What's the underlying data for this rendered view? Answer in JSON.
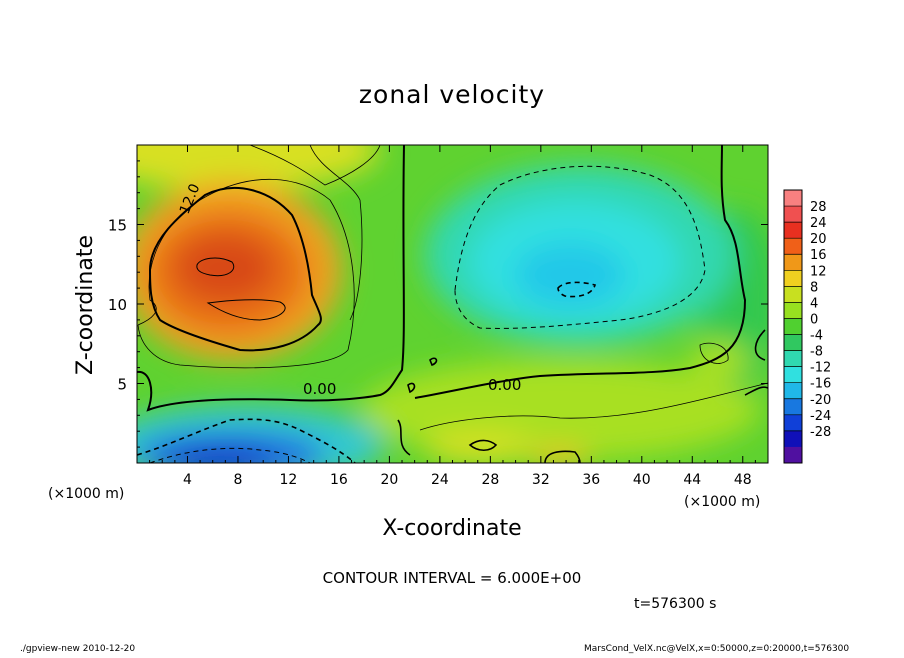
{
  "chart_data": {
    "type": "heatmap",
    "title": "zonal velocity",
    "xlabel": "X-coordinate",
    "ylabel": "Z-coordinate",
    "x_unit": "(×1000 m)",
    "y_unit": "(×1000 m)",
    "xlim": [
      0,
      50
    ],
    "ylim": [
      0,
      20
    ],
    "x_ticks": [
      4,
      8,
      12,
      16,
      20,
      24,
      28,
      32,
      36,
      40,
      44,
      48
    ],
    "y_ticks": [
      5,
      10,
      15
    ],
    "colorbar_levels": [
      28,
      24,
      20,
      16,
      12,
      8,
      4,
      0,
      -4,
      -8,
      -12,
      -16,
      -20,
      -24,
      -28
    ],
    "contour_labels": [
      "12.0",
      "0.00",
      "0.00"
    ],
    "contour_interval_text": "CONTOUR INTERVAL = 6.000E+00",
    "time_text": "t=576300 s",
    "features": [
      {
        "name": "positive jet core",
        "x": 7.5,
        "z": 11.5,
        "value": 20
      },
      {
        "name": "negative region",
        "x": 34,
        "z": 12,
        "value": -12
      },
      {
        "name": "negative surface flow",
        "x": 8,
        "z": 1,
        "value": -20
      },
      {
        "name": "positive surface flow",
        "x": 33,
        "z": 0.5,
        "value": 14
      }
    ],
    "grid": false,
    "colorbar_position": "right"
  },
  "footer": {
    "left": "./gpview-new   2010-12-20",
    "right": "MarsCond_VelX.nc@VelX,x=0:50000,z=0:20000,t=576300"
  }
}
